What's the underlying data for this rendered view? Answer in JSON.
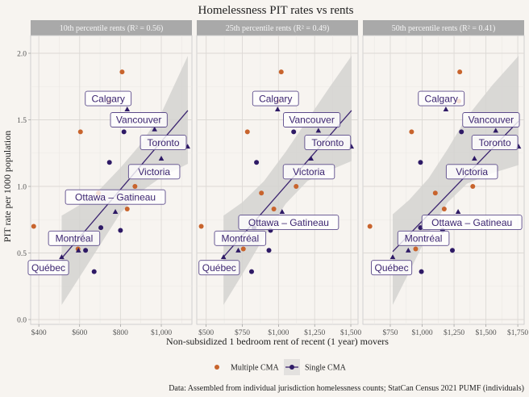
{
  "chart_data": {
    "type": "scatter",
    "title": "Homelessness PIT rates vs rents",
    "xlabel": "Non-subsidized 1 bedroom rent of recent (1 year) movers",
    "ylabel": "PIT rate per 1000 population",
    "caption": "Data: Assembled from individual jurisdiction homelessness counts; StatCan Census 2021 PUMF (individuals)",
    "ylim": [
      0,
      2.2
    ],
    "yticks": [
      0.0,
      0.5,
      1.0,
      1.5,
      2.0
    ],
    "ytick_labels": [
      "0.0",
      "0.5",
      "1.0",
      "1.5",
      "2.0"
    ],
    "grid": true,
    "legend": {
      "placement": "bottom",
      "entries": [
        {
          "name": "Multiple CMA",
          "color": "#c8642d",
          "shape": "circle"
        },
        {
          "name": "Single CMA",
          "color": "#2e1a66",
          "shape": "circle-with-line"
        }
      ]
    },
    "colors": {
      "multiple": "#c8642d",
      "single": "#2e1a66",
      "fit_line": "#3b2470",
      "band": "#d4d2d0",
      "strip": "#a9a9a9"
    },
    "panels": [
      {
        "strip": "10th percentile rents (R² = 0.56)",
        "xlim": [
          360,
          1150
        ],
        "xticks": [
          400,
          600,
          800,
          1000
        ],
        "xtick_labels": [
          "$400",
          "$600",
          "$800",
          "$1,000"
        ],
        "fit": {
          "x": [
            512,
            1130
          ],
          "y": [
            0.46,
            1.57
          ]
        },
        "band": {
          "upper": [
            [
              512,
              0.78
            ],
            [
              600,
              0.86
            ],
            [
              700,
              0.98
            ],
            [
              800,
              1.14
            ],
            [
              900,
              1.32
            ],
            [
              1000,
              1.55
            ],
            [
              1130,
              1.98
            ]
          ],
          "lower": [
            [
              512,
              0.11
            ],
            [
              600,
              0.32
            ],
            [
              700,
              0.56
            ],
            [
              800,
              0.8
            ],
            [
              900,
              0.96
            ],
            [
              1000,
              1.07
            ],
            [
              1130,
              1.17
            ]
          ]
        },
        "points": [
          {
            "x": 808,
            "y": 1.86,
            "group": "multiple",
            "shape": "circle"
          },
          {
            "x": 746,
            "y": 1.64,
            "group": "multiple",
            "shape": "circle"
          },
          {
            "x": 833,
            "y": 1.58,
            "group": "single",
            "shape": "triangle"
          },
          {
            "x": 604,
            "y": 1.41,
            "group": "multiple",
            "shape": "circle"
          },
          {
            "x": 817,
            "y": 1.41,
            "group": "single",
            "shape": "circle"
          },
          {
            "x": 967,
            "y": 1.43,
            "group": "single",
            "shape": "triangle"
          },
          {
            "x": 1129,
            "y": 1.3,
            "group": "single",
            "shape": "triangle"
          },
          {
            "x": 1000,
            "y": 1.21,
            "group": "single",
            "shape": "triangle"
          },
          {
            "x": 746,
            "y": 1.18,
            "group": "single",
            "shape": "circle"
          },
          {
            "x": 871,
            "y": 1.0,
            "group": "multiple",
            "shape": "circle"
          },
          {
            "x": 692,
            "y": 0.95,
            "group": "multiple",
            "shape": "circle"
          },
          {
            "x": 775,
            "y": 0.81,
            "group": "single",
            "shape": "triangle"
          },
          {
            "x": 833,
            "y": 0.83,
            "group": "multiple",
            "shape": "circle"
          },
          {
            "x": 375,
            "y": 0.7,
            "group": "multiple",
            "shape": "circle"
          },
          {
            "x": 704,
            "y": 0.69,
            "group": "single",
            "shape": "circle"
          },
          {
            "x": 800,
            "y": 0.67,
            "group": "single",
            "shape": "circle"
          },
          {
            "x": 592,
            "y": 0.53,
            "group": "multiple",
            "shape": "circle"
          },
          {
            "x": 594,
            "y": 0.52,
            "group": "single",
            "shape": "triangle"
          },
          {
            "x": 629,
            "y": 0.52,
            "group": "single",
            "shape": "circle"
          },
          {
            "x": 512,
            "y": 0.47,
            "group": "single",
            "shape": "triangle"
          },
          {
            "x": 671,
            "y": 0.36,
            "group": "single",
            "shape": "circle"
          }
        ],
        "labels": [
          {
            "text": "Calgary",
            "x": 740,
            "y": 1.66
          },
          {
            "text": "Vancouver",
            "x": 890,
            "y": 1.5
          },
          {
            "text": "Toronto",
            "x": 1010,
            "y": 1.33
          },
          {
            "text": "Victoria",
            "x": 965,
            "y": 1.11
          },
          {
            "text": "Ottawa – Gatineau",
            "x": 775,
            "y": 0.92
          },
          {
            "text": "Montréal",
            "x": 573,
            "y": 0.61
          },
          {
            "text": "Québec",
            "x": 447,
            "y": 0.39
          }
        ]
      },
      {
        "strip": "25th percentile rents (R² = 0.49)",
        "xlim": [
          435,
          1550
        ],
        "xticks": [
          500,
          750,
          1000,
          1250,
          1500
        ],
        "xtick_labels": [
          "$500",
          "$750",
          "$1,000",
          "$1,250",
          "$1,500"
        ],
        "fit": {
          "x": [
            620,
            1505
          ],
          "y": [
            0.47,
            1.57
          ]
        },
        "band": {
          "upper": [
            [
              620,
              0.78
            ],
            [
              750,
              0.88
            ],
            [
              900,
              1.04
            ],
            [
              1050,
              1.26
            ],
            [
              1200,
              1.5
            ],
            [
              1350,
              1.74
            ],
            [
              1505,
              1.98
            ]
          ],
          "lower": [
            [
              620,
              0.11
            ],
            [
              750,
              0.34
            ],
            [
              900,
              0.62
            ],
            [
              1050,
              0.87
            ],
            [
              1200,
              1.04
            ],
            [
              1350,
              1.12
            ],
            [
              1505,
              1.19
            ]
          ]
        },
        "points": [
          {
            "x": 1019,
            "y": 1.86,
            "group": "multiple",
            "shape": "circle"
          },
          {
            "x": 1000,
            "y": 1.64,
            "group": "multiple",
            "shape": "circle"
          },
          {
            "x": 994,
            "y": 1.58,
            "group": "single",
            "shape": "triangle"
          },
          {
            "x": 785,
            "y": 1.41,
            "group": "multiple",
            "shape": "circle"
          },
          {
            "x": 1105,
            "y": 1.41,
            "group": "single",
            "shape": "circle"
          },
          {
            "x": 1276,
            "y": 1.42,
            "group": "single",
            "shape": "triangle"
          },
          {
            "x": 1504,
            "y": 1.3,
            "group": "single",
            "shape": "triangle"
          },
          {
            "x": 1225,
            "y": 1.21,
            "group": "single",
            "shape": "triangle"
          },
          {
            "x": 848,
            "y": 1.18,
            "group": "single",
            "shape": "circle"
          },
          {
            "x": 1122,
            "y": 1.0,
            "group": "multiple",
            "shape": "circle"
          },
          {
            "x": 882,
            "y": 0.95,
            "group": "multiple",
            "shape": "circle"
          },
          {
            "x": 1025,
            "y": 0.81,
            "group": "single",
            "shape": "triangle"
          },
          {
            "x": 968,
            "y": 0.83,
            "group": "multiple",
            "shape": "circle"
          },
          {
            "x": 466,
            "y": 0.7,
            "group": "multiple",
            "shape": "circle"
          },
          {
            "x": 831,
            "y": 0.69,
            "group": "single",
            "shape": "circle"
          },
          {
            "x": 945,
            "y": 0.67,
            "group": "single",
            "shape": "circle"
          },
          {
            "x": 757,
            "y": 0.53,
            "group": "multiple",
            "shape": "circle"
          },
          {
            "x": 722,
            "y": 0.52,
            "group": "single",
            "shape": "triangle"
          },
          {
            "x": 934,
            "y": 0.52,
            "group": "single",
            "shape": "circle"
          },
          {
            "x": 620,
            "y": 0.47,
            "group": "single",
            "shape": "triangle"
          },
          {
            "x": 814,
            "y": 0.36,
            "group": "single",
            "shape": "circle"
          }
        ],
        "labels": [
          {
            "text": "Calgary",
            "x": 980,
            "y": 1.66
          },
          {
            "text": "Vancouver",
            "x": 1230,
            "y": 1.5
          },
          {
            "text": "Toronto",
            "x": 1340,
            "y": 1.33
          },
          {
            "text": "Victoria",
            "x": 1210,
            "y": 1.11
          },
          {
            "text": "Ottawa – Gatineau",
            "x": 1070,
            "y": 0.73
          },
          {
            "text": "Montréal",
            "x": 735,
            "y": 0.61
          },
          {
            "text": "Québec",
            "x": 590,
            "y": 0.39
          }
        ]
      },
      {
        "strip": "50th percentile rents (R² = 0.41)",
        "xlim": [
          535,
          1800
        ],
        "xticks": [
          750,
          1000,
          1250,
          1500,
          1750
        ],
        "xtick_labels": [
          "$750",
          "$1,000",
          "$1,250",
          "$1,500",
          "$1,750"
        ],
        "fit": {
          "x": [
            769,
            1756
          ],
          "y": [
            0.51,
            1.49
          ]
        },
        "band": {
          "upper": [
            [
              769,
              0.79
            ],
            [
              900,
              0.9
            ],
            [
              1050,
              1.06
            ],
            [
              1200,
              1.28
            ],
            [
              1350,
              1.52
            ],
            [
              1550,
              1.76
            ],
            [
              1756,
              1.98
            ]
          ],
          "lower": [
            [
              769,
              0.11
            ],
            [
              900,
              0.36
            ],
            [
              1050,
              0.65
            ],
            [
              1200,
              0.88
            ],
            [
              1350,
              1.02
            ],
            [
              1550,
              1.1
            ],
            [
              1756,
              1.16
            ]
          ]
        },
        "points": [
          {
            "x": 1295,
            "y": 1.86,
            "group": "multiple",
            "shape": "circle"
          },
          {
            "x": 1288,
            "y": 1.64,
            "group": "multiple",
            "shape": "circle"
          },
          {
            "x": 1186,
            "y": 1.58,
            "group": "single",
            "shape": "triangle"
          },
          {
            "x": 917,
            "y": 1.41,
            "group": "multiple",
            "shape": "circle"
          },
          {
            "x": 1308,
            "y": 1.41,
            "group": "single",
            "shape": "circle"
          },
          {
            "x": 1577,
            "y": 1.42,
            "group": "single",
            "shape": "triangle"
          },
          {
            "x": 1756,
            "y": 1.3,
            "group": "single",
            "shape": "triangle"
          },
          {
            "x": 1410,
            "y": 1.21,
            "group": "single",
            "shape": "triangle"
          },
          {
            "x": 987,
            "y": 1.18,
            "group": "single",
            "shape": "circle"
          },
          {
            "x": 1397,
            "y": 1.0,
            "group": "multiple",
            "shape": "circle"
          },
          {
            "x": 1103,
            "y": 0.95,
            "group": "multiple",
            "shape": "circle"
          },
          {
            "x": 1282,
            "y": 0.81,
            "group": "single",
            "shape": "triangle"
          },
          {
            "x": 1173,
            "y": 0.83,
            "group": "multiple",
            "shape": "circle"
          },
          {
            "x": 590,
            "y": 0.7,
            "group": "multiple",
            "shape": "circle"
          },
          {
            "x": 987,
            "y": 0.69,
            "group": "single",
            "shape": "circle"
          },
          {
            "x": 1160,
            "y": 0.67,
            "group": "single",
            "shape": "circle"
          },
          {
            "x": 949,
            "y": 0.53,
            "group": "multiple",
            "shape": "circle"
          },
          {
            "x": 891,
            "y": 0.52,
            "group": "single",
            "shape": "triangle"
          },
          {
            "x": 1237,
            "y": 0.52,
            "group": "single",
            "shape": "circle"
          },
          {
            "x": 769,
            "y": 0.47,
            "group": "single",
            "shape": "triangle"
          },
          {
            "x": 994,
            "y": 0.36,
            "group": "single",
            "shape": "circle"
          }
        ],
        "labels": [
          {
            "text": "Calgary",
            "x": 1150,
            "y": 1.66
          },
          {
            "text": "Vancouver",
            "x": 1540,
            "y": 1.5
          },
          {
            "text": "Toronto",
            "x": 1570,
            "y": 1.33
          },
          {
            "text": "Victoria",
            "x": 1390,
            "y": 1.11
          },
          {
            "text": "Ottawa – Gatineau",
            "x": 1390,
            "y": 0.73
          },
          {
            "text": "Montréal",
            "x": 1010,
            "y": 0.61
          },
          {
            "text": "Québec",
            "x": 760,
            "y": 0.39
          }
        ]
      }
    ]
  }
}
